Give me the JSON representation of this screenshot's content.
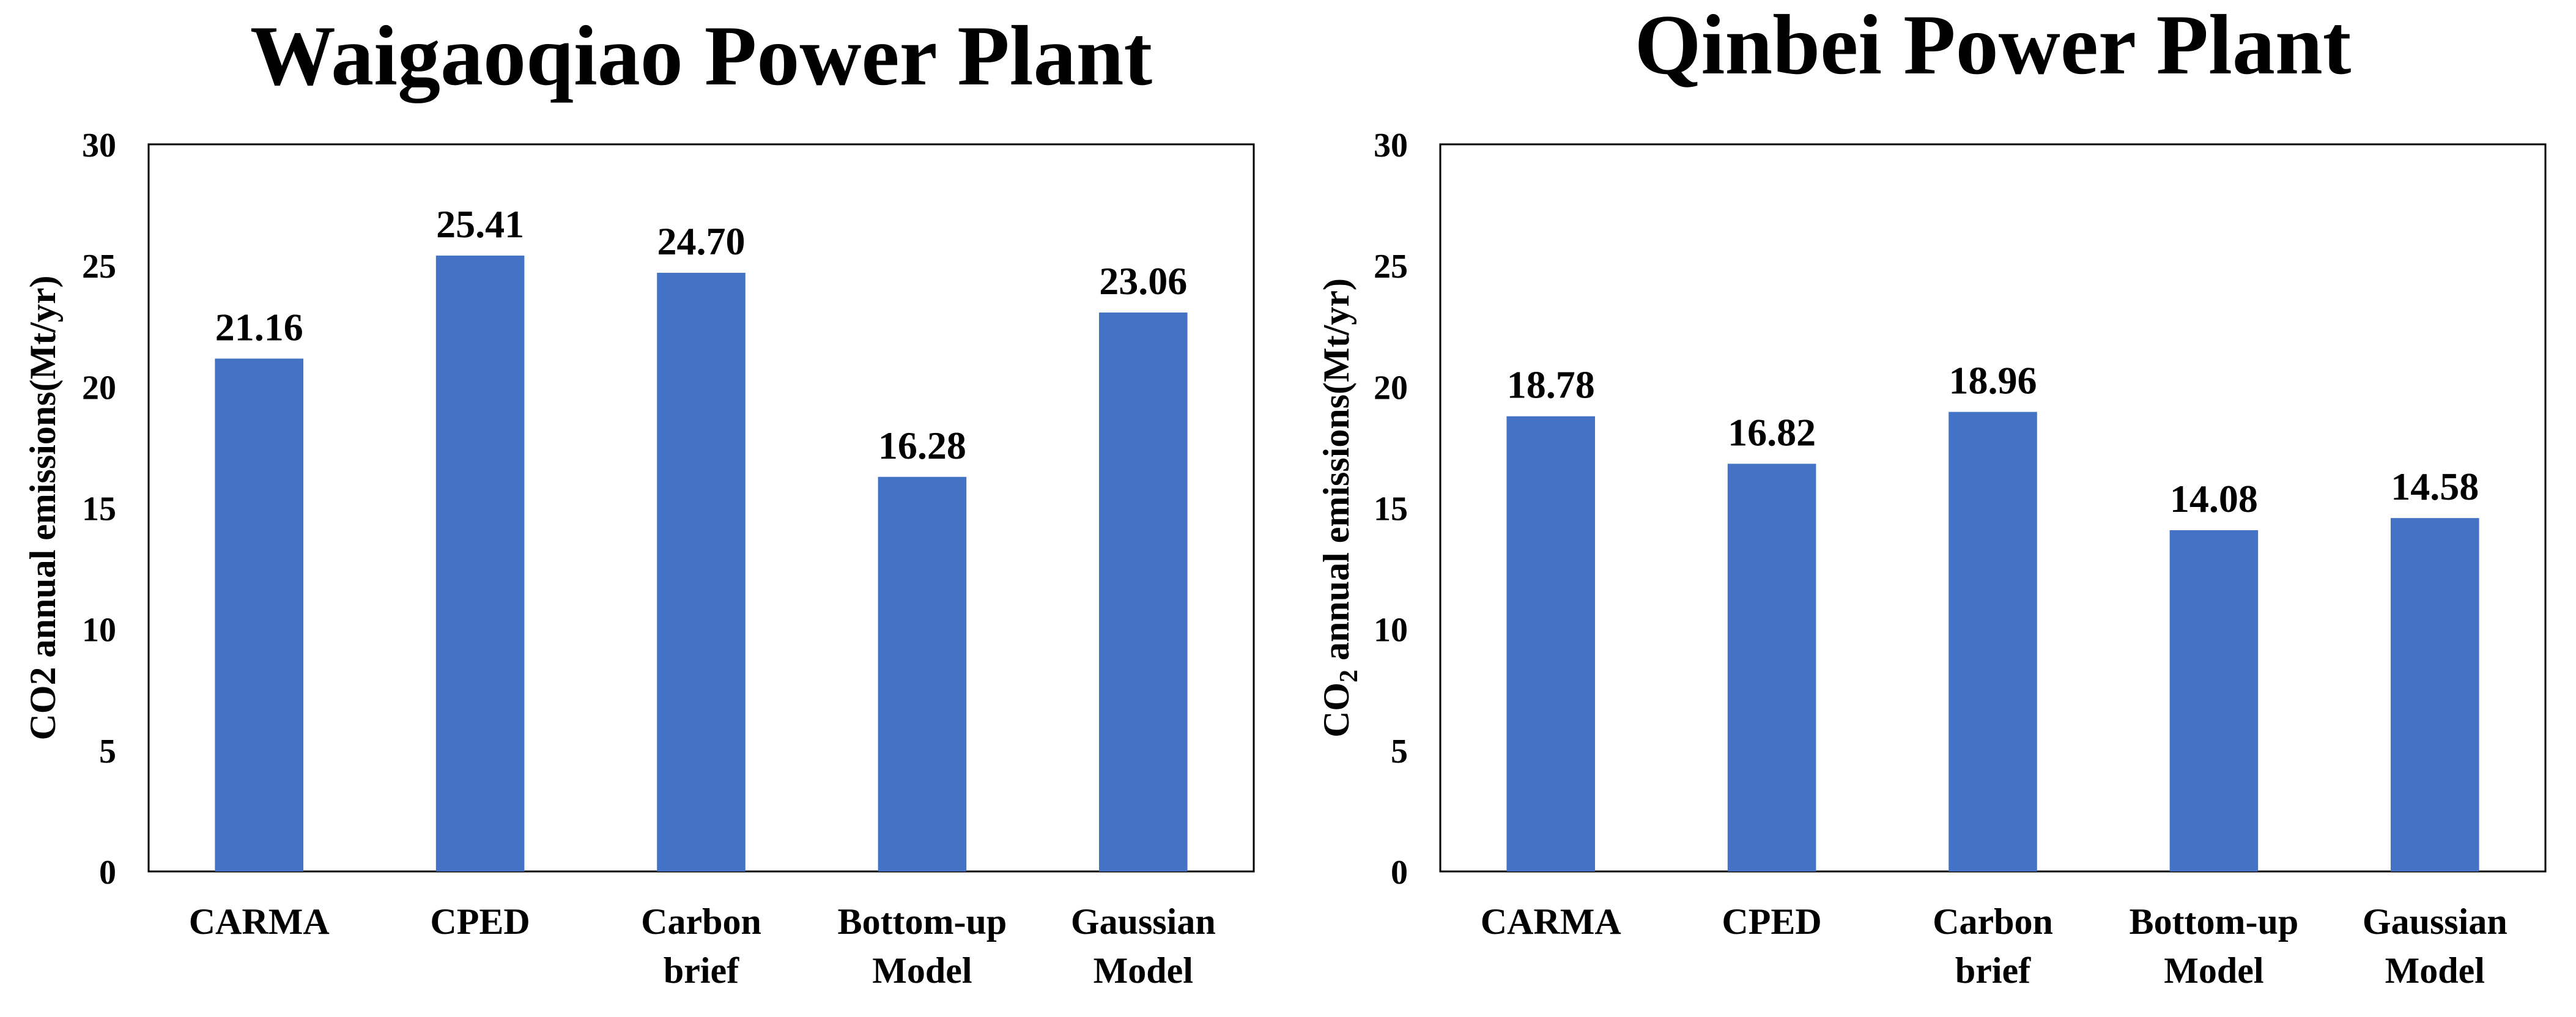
{
  "colors": {
    "bar": "#4472C4",
    "axis": "#000000",
    "background": "#FFFFFF"
  },
  "chart_data": [
    {
      "type": "bar",
      "title": "Waigaoqiao Power Plant",
      "ylabel": "CO2 annual emissions(Mt/yr)",
      "ylabel_parts": {
        "pre": "CO2 annual emissions(Mt/yr)",
        "sub": "",
        "post": ""
      },
      "xlabel": "",
      "ylim": [
        0,
        30
      ],
      "yticks": [
        0,
        5,
        10,
        15,
        20,
        25,
        30
      ],
      "grid": false,
      "categories": [
        [
          "CARMA"
        ],
        [
          "CPED"
        ],
        [
          "Carbon",
          "brief"
        ],
        [
          "Bottom-up",
          "Model"
        ],
        [
          "Gaussian",
          "Model"
        ]
      ],
      "values": [
        21.16,
        25.41,
        24.7,
        16.28,
        23.06
      ],
      "value_labels": [
        "21.16",
        "25.41",
        "24.70",
        "16.28",
        "23.06"
      ]
    },
    {
      "type": "bar",
      "title": "Qinbei Power Plant",
      "ylabel": "CO2 annual emissions(Mt/yr)",
      "ylabel_parts": {
        "pre": "CO",
        "sub": "2",
        "post": " annual emissions(Mt/yr)"
      },
      "xlabel": "",
      "ylim": [
        0,
        30
      ],
      "yticks": [
        0,
        5,
        10,
        15,
        20,
        25,
        30
      ],
      "grid": false,
      "categories": [
        [
          "CARMA"
        ],
        [
          "CPED"
        ],
        [
          "Carbon",
          "brief"
        ],
        [
          "Bottom-up",
          "Model"
        ],
        [
          "Gaussian",
          "Model"
        ]
      ],
      "values": [
        18.78,
        16.82,
        18.96,
        14.08,
        14.58
      ],
      "value_labels": [
        "18.78",
        "16.82",
        "18.96",
        "14.08",
        "14.58"
      ]
    }
  ]
}
